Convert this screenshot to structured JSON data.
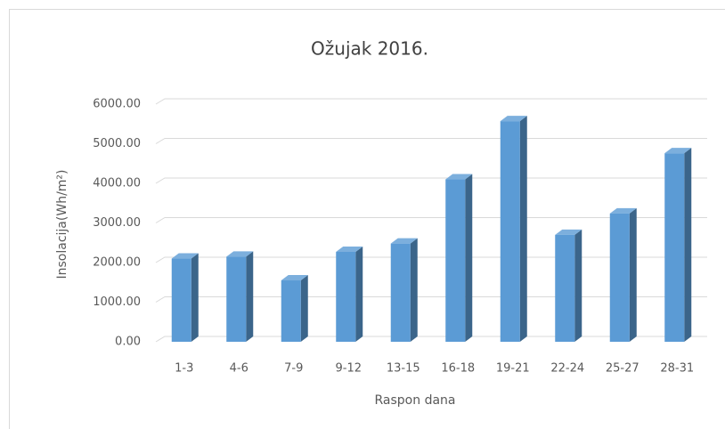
{
  "chart_data": {
    "type": "bar",
    "title": "Ožujak 2016.",
    "x_label": "Raspon dana",
    "y_label": "Insolacija(Wh/m²)",
    "categories": [
      "1-3",
      "4-6",
      "7-9",
      "9-12",
      "13-15",
      "16-18",
      "19-21",
      "22-24",
      "25-27",
      "28-31"
    ],
    "values": [
      2100,
      2150,
      1550,
      2270,
      2480,
      4100,
      5570,
      2700,
      3240,
      4760
    ],
    "color": "#5b9bd5",
    "ylim": [
      0,
      6000
    ],
    "yticks": [
      {
        "value": 0,
        "label": "0.00"
      },
      {
        "value": 1000,
        "label": "1000.00"
      },
      {
        "value": 2000,
        "label": "2000.00"
      },
      {
        "value": 3000,
        "label": "3000.00"
      },
      {
        "value": 4000,
        "label": "4000.00"
      },
      {
        "value": 5000,
        "label": "5000.00"
      },
      {
        "value": 6000,
        "label": "6000.00"
      }
    ],
    "grid": true
  }
}
